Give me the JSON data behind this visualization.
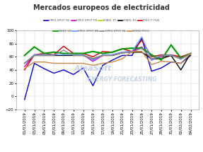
{
  "title": "Mercados europeos de electricidad",
  "xlabels": [
    "01/01/2019",
    "03/01/2019",
    "05/01/2019",
    "07/01/2019",
    "09/01/2019",
    "11/01/2019",
    "13/01/2019",
    "15/01/2019",
    "17/01/2019",
    "19/01/2019",
    "21/01/2019",
    "23/01/2019",
    "25/01/2019",
    "27/01/2019",
    "29/01/2019",
    "31/01/2019",
    "02/02/2019",
    "04/02/2019"
  ],
  "ylim": [
    -20,
    100
  ],
  "yticks": [
    -20,
    0,
    20,
    40,
    60,
    80,
    100
  ],
  "series": {
    "EPEX SPOT DE": {
      "color": "#0000CC",
      "linewidth": 1.0,
      "values": [
        -5,
        50,
        42,
        35,
        40,
        33,
        43,
        16,
        47,
        55,
        62,
        62,
        88,
        38,
        43,
        52,
        50,
        62
      ]
    },
    "EPEX SPOT FR": {
      "color": "#CC00CC",
      "linewidth": 1.0,
      "values": [
        45,
        63,
        63,
        62,
        63,
        62,
        63,
        53,
        62,
        63,
        67,
        68,
        75,
        55,
        60,
        62,
        58,
        65
      ]
    },
    "MIBEL PT": {
      "color": "#CCCC00",
      "linewidth": 1.0,
      "values": [
        50,
        62,
        62,
        62,
        62,
        62,
        62,
        57,
        62,
        62,
        66,
        67,
        67,
        57,
        57,
        62,
        57,
        65
      ]
    },
    "MIBEL ES": {
      "color": "#000000",
      "linewidth": 1.0,
      "values": [
        50,
        62,
        62,
        62,
        62,
        62,
        62,
        57,
        62,
        62,
        66,
        67,
        67,
        57,
        57,
        62,
        40,
        65
      ]
    },
    "IPEX IT PLN": {
      "color": "#CC0000",
      "linewidth": 1.0,
      "values": [
        40,
        63,
        65,
        63,
        76,
        65,
        65,
        60,
        68,
        67,
        72,
        68,
        85,
        60,
        63,
        63,
        60,
        65
      ]
    },
    "N2EX UK": {
      "color": "#009900",
      "linewidth": 1.5,
      "values": [
        62,
        75,
        65,
        67,
        65,
        65,
        65,
        68,
        65,
        67,
        72,
        73,
        73,
        63,
        55,
        78,
        58,
        65
      ]
    },
    "EPEX SPOT BE": {
      "color": "#6699FF",
      "linewidth": 1.0,
      "values": [
        50,
        63,
        63,
        63,
        63,
        63,
        63,
        55,
        63,
        63,
        67,
        68,
        90,
        55,
        62,
        63,
        56,
        65
      ]
    },
    "EPEX SPOT NL": {
      "color": "#888888",
      "linewidth": 1.0,
      "values": [
        50,
        62,
        62,
        62,
        70,
        62,
        62,
        57,
        62,
        62,
        66,
        67,
        73,
        57,
        62,
        62,
        57,
        65
      ]
    },
    "NORD POOL": {
      "color": "#CC8844",
      "linewidth": 1.0,
      "values": [
        42,
        52,
        52,
        50,
        50,
        50,
        50,
        47,
        50,
        52,
        57,
        68,
        68,
        48,
        53,
        52,
        50,
        65
      ]
    }
  },
  "legend_row1": [
    "EPEX SPOT DE",
    "EPEX SPOT FR",
    "MIBEL PT",
    "MIBEL ES",
    "IPEX IT PLN"
  ],
  "legend_row2": [
    "N2EX UK",
    "EPEX SPOT BE",
    "EPEX SPOT NL",
    "NORD POOL"
  ],
  "watermark_line1": "AleaSoft",
  "watermark_line2": "ENERGY FORECASTING",
  "background_color": "#FFFFFF",
  "grid_color": "#CCCCCC",
  "title_fontsize": 7,
  "tick_fontsize": 4.0,
  "legend_fontsize": 3.0
}
